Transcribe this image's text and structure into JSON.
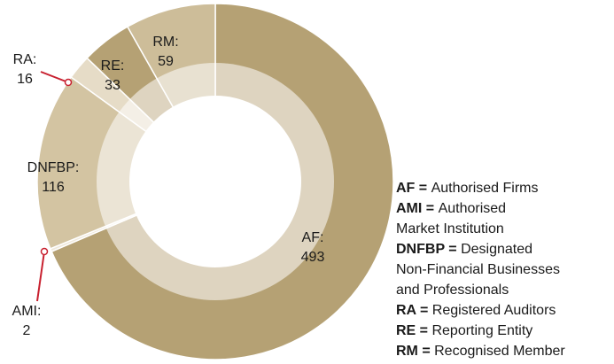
{
  "chart_data": {
    "type": "donut",
    "categories": [
      "AF:",
      "AMI:",
      "DNFBP:",
      "RA:",
      "RE:",
      "RM:"
    ],
    "values": [
      493,
      2,
      116,
      16,
      33,
      59
    ],
    "colors": [
      "#b5a174",
      "#efe9dc",
      "#d3c4a2",
      "#e6dcc7",
      "#b5a174",
      "#cdbd99"
    ],
    "legend": [
      {
        "key": "AF =",
        "lines": [
          "Authorised Firms"
        ]
      },
      {
        "key": "AMI =",
        "lines": [
          "Authorised",
          "Market Institution"
        ]
      },
      {
        "key": "DNFBP =",
        "lines": [
          "Designated",
          "Non-Financial Businesses",
          "and Professionals"
        ]
      },
      {
        "key": "RA =",
        "lines": [
          "Registered Auditors"
        ]
      },
      {
        "key": "RE =",
        "lines": [
          "Reporting Entity"
        ]
      },
      {
        "key": "RM =",
        "lines": [
          "Recognised Member"
        ]
      }
    ]
  }
}
